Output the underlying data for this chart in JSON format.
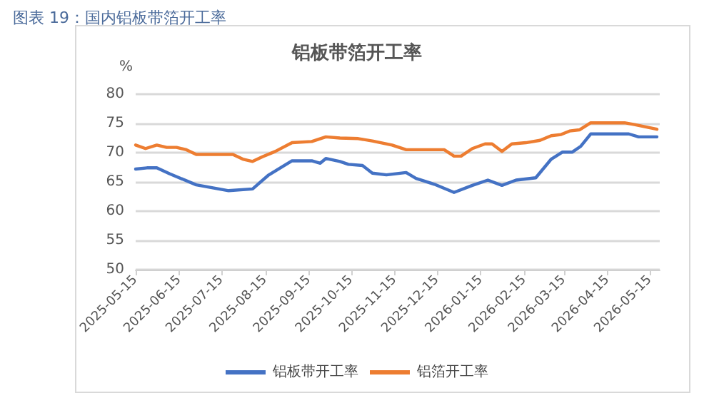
{
  "chart_data": {
    "type": "line",
    "title": "图表 19：国内铝板带箔开工率",
    "subtitle": "铝板带箔开工率",
    "ylabel": "%",
    "xlim": [
      "2025-05-15",
      "2026-05-22"
    ],
    "xticks": [
      "2025-05-15",
      "2025-06-15",
      "2025-07-15",
      "2025-08-15",
      "2025-09-15",
      "2025-10-15",
      "2025-11-15",
      "2025-12-15",
      "2026-01-15",
      "2026-02-15",
      "2026-03-15",
      "2026-04-15",
      "2026-05-15"
    ],
    "ylim": [
      50,
      80
    ],
    "yticks": [
      50,
      55,
      60,
      65,
      70,
      75,
      80
    ],
    "grid": "y",
    "legend": "bottom",
    "marker": "none",
    "line_style": "solid",
    "series": [
      {
        "name": "铝板带开工率",
        "color": "#4472c4",
        "x": [
          "2025-05-15",
          "2025-05-23",
          "2025-05-30",
          "2025-06-08",
          "2025-06-27",
          "2025-07-20",
          "2025-08-06",
          "2025-08-17",
          "2025-08-23",
          "2025-09-03",
          "2025-09-17",
          "2025-09-23",
          "2025-09-27",
          "2025-10-07",
          "2025-10-13",
          "2025-10-23",
          "2025-10-30",
          "2025-11-09",
          "2025-11-23",
          "2025-11-30",
          "2025-12-13",
          "2025-12-27",
          "2026-01-09",
          "2026-01-20",
          "2026-01-30",
          "2026-02-09",
          "2026-02-23",
          "2026-03-06",
          "2026-03-14",
          "2026-03-21",
          "2026-03-27",
          "2026-04-03",
          "2026-04-30",
          "2026-05-07",
          "2026-05-20"
        ],
        "values": [
          67.2,
          67.4,
          67.4,
          66.4,
          64.5,
          63.5,
          63.8,
          66.1,
          67.0,
          68.6,
          68.6,
          68.2,
          69.0,
          68.5,
          68.0,
          67.8,
          66.5,
          66.2,
          66.6,
          65.6,
          64.6,
          63.2,
          64.4,
          65.3,
          64.4,
          65.3,
          65.7,
          68.9,
          70.1,
          70.1,
          71.1,
          73.2,
          73.2,
          72.7,
          72.7
        ]
      },
      {
        "name": "铝箔开工率",
        "color": "#ed7d31",
        "x": [
          "2025-05-15",
          "2025-05-22",
          "2025-05-30",
          "2025-06-06",
          "2025-06-13",
          "2025-06-20",
          "2025-06-27",
          "2025-07-23",
          "2025-07-30",
          "2025-08-06",
          "2025-08-13",
          "2025-08-22",
          "2025-09-03",
          "2025-09-17",
          "2025-09-27",
          "2025-10-07",
          "2025-10-20",
          "2025-10-30",
          "2025-11-13",
          "2025-11-23",
          "2025-12-20",
          "2025-12-27",
          "2026-01-01",
          "2026-01-09",
          "2026-01-18",
          "2026-01-23",
          "2026-01-30",
          "2026-02-06",
          "2026-02-16",
          "2026-02-26",
          "2026-03-06",
          "2026-03-13",
          "2026-03-19",
          "2026-03-26",
          "2026-04-03",
          "2026-04-27",
          "2026-05-04",
          "2026-05-20"
        ],
        "values": [
          71.3,
          70.7,
          71.3,
          70.9,
          70.9,
          70.5,
          69.7,
          69.7,
          68.9,
          68.5,
          69.3,
          70.2,
          71.7,
          71.9,
          72.7,
          72.5,
          72.4,
          72.0,
          71.3,
          70.5,
          70.5,
          69.4,
          69.4,
          70.7,
          71.5,
          71.5,
          70.2,
          71.5,
          71.7,
          72.1,
          72.9,
          73.1,
          73.7,
          73.9,
          75.1,
          75.1,
          74.8,
          74.0
        ]
      }
    ]
  }
}
